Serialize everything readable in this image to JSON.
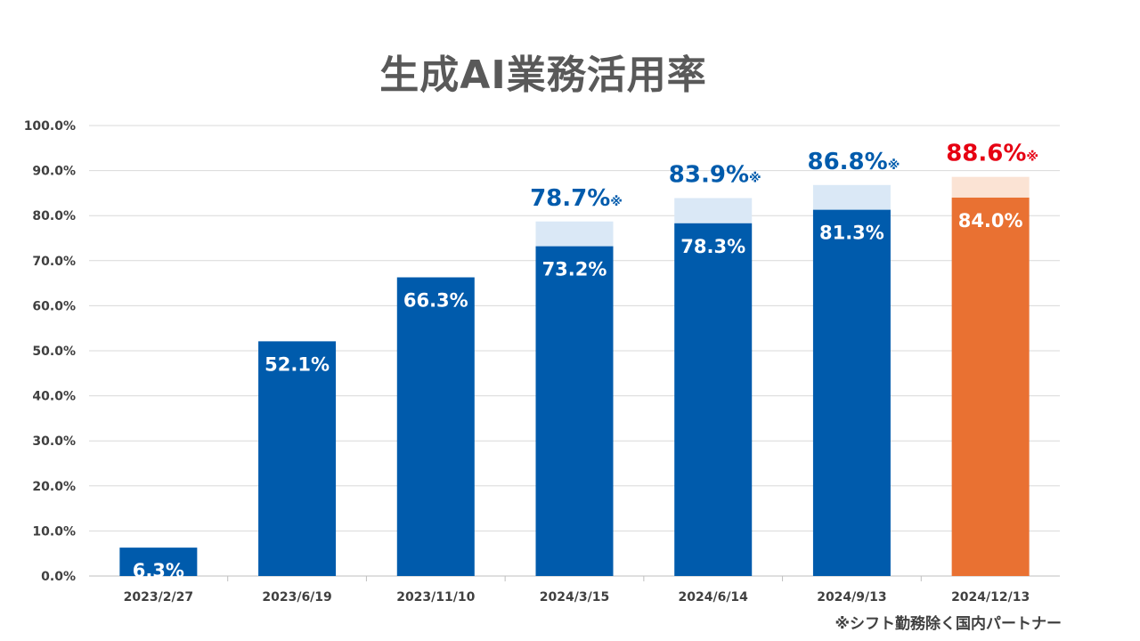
{
  "chart_data": {
    "type": "bar",
    "title": "生成AI業務活用率",
    "footnote": "※シフト勤務除く国内パートナー",
    "categories": [
      "2023/2/27",
      "2023/6/19",
      "2023/11/10",
      "2024/3/15",
      "2024/6/14",
      "2024/9/13",
      "2024/12/13"
    ],
    "series": [
      {
        "values": [
          6.3,
          52.1,
          66.3,
          73.2,
          78.3,
          81.3,
          84.0
        ],
        "labels": [
          "6.3%",
          "52.1%",
          "66.3%",
          "73.2%",
          "78.3%",
          "81.3%",
          "84.0%"
        ]
      },
      {
        "values": [
          null,
          null,
          null,
          78.7,
          83.9,
          86.8,
          88.6
        ],
        "labels": [
          "",
          "",
          "",
          "78.7%",
          "83.9%",
          "86.8%",
          "88.6%"
        ],
        "mark": "※"
      }
    ],
    "highlight_index": 6,
    "ylim": [
      0,
      100
    ],
    "yticks": [
      "0.0%",
      "10.0%",
      "20.0%",
      "30.0%",
      "40.0%",
      "50.0%",
      "60.0%",
      "70.0%",
      "80.0%",
      "90.0%",
      "100.0%"
    ],
    "grid": true,
    "colors": {
      "bar": "#005BAC",
      "bar_light": "#DAE8F6",
      "highlight": "#E97132",
      "highlight_light": "#FBE3D4",
      "label_top": "#005BAC",
      "label_top_highlight": "#E60012"
    }
  }
}
